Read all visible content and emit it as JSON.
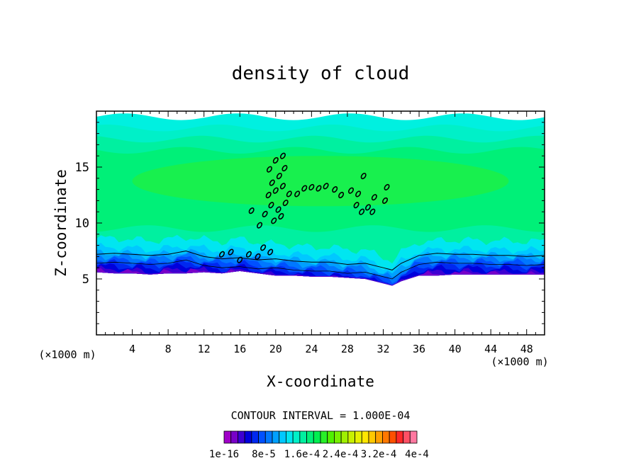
{
  "chart_data": {
    "type": "heatmap",
    "title": "density of cloud",
    "xlabel": "X-coordinate",
    "ylabel": "Z-coordinate",
    "x_unit": "(×1000 m)",
    "x_unit_right": "(×1000 m)",
    "xlim": [
      0,
      50
    ],
    "ylim": [
      0,
      20
    ],
    "x_ticks": [
      4,
      8,
      12,
      16,
      20,
      24,
      28,
      32,
      36,
      40,
      44,
      48
    ],
    "y_ticks": [
      5,
      10,
      15
    ],
    "grid": false,
    "contour_interval_label": "CONTOUR INTERVAL = 1.000E-04",
    "colorbar": {
      "tick_labels": [
        "1e-16",
        "8e-5",
        "1.6e-4",
        "2.4e-4",
        "3.2e-4",
        "4e-4"
      ],
      "colors": [
        "#a000c8",
        "#7800c8",
        "#3c00d2",
        "#0000dc",
        "#0028f0",
        "#0050ff",
        "#0078ff",
        "#00a0ff",
        "#00c8ff",
        "#00e6f0",
        "#00f0c8",
        "#00f0a0",
        "#00f078",
        "#00f050",
        "#28f028",
        "#50f000",
        "#78f000",
        "#a0f000",
        "#c8f000",
        "#e6f000",
        "#ffe600",
        "#ffc800",
        "#ffa000",
        "#ff7800",
        "#ff5000",
        "#ff2828",
        "#ff5064",
        "#ff78a0"
      ]
    },
    "profile_x": [
      0,
      2,
      4,
      6,
      8,
      10,
      12,
      14,
      16,
      18,
      20,
      22,
      24,
      26,
      28,
      30,
      32,
      33,
      34,
      36,
      38,
      40,
      42,
      44,
      46,
      48,
      50
    ],
    "cloud_base_z": [
      5.6,
      5.5,
      5.5,
      5.4,
      5.5,
      5.5,
      5.6,
      5.5,
      5.7,
      5.5,
      5.3,
      5.3,
      5.2,
      5.2,
      5.1,
      5.0,
      4.6,
      4.4,
      4.8,
      5.3,
      5.3,
      5.4,
      5.4,
      5.4,
      5.4,
      5.4,
      5.4
    ],
    "contour_z": [
      7.2,
      7.3,
      7.2,
      7.1,
      7.2,
      7.5,
      7.0,
      6.8,
      6.9,
      6.7,
      6.8,
      6.6,
      6.5,
      6.5,
      6.3,
      6.4,
      6.0,
      5.8,
      6.4,
      7.1,
      7.3,
      7.2,
      7.2,
      7.1,
      7.1,
      7.0,
      7.1
    ],
    "field_bands": [
      {
        "z": 19.5,
        "color": "#00f0e0"
      },
      {
        "z": 18.5,
        "color": "#00f0c8"
      },
      {
        "z": 17.5,
        "color": "#00f0a0"
      },
      {
        "z": 16.5,
        "color": "#00f078"
      },
      {
        "z": 10.5,
        "color": "#00f078"
      },
      {
        "z": 9.5,
        "color": "#00f0a0"
      },
      {
        "z": 8.8,
        "color": "#00e6f0"
      },
      {
        "z": 8.0,
        "color": "#00c8ff"
      },
      {
        "z": 7.5,
        "color": "#00a0ff"
      },
      {
        "z": 7.2,
        "color": "#0078ff"
      },
      {
        "z": 6.9,
        "color": "#0050ff"
      },
      {
        "z": 6.6,
        "color": "#0028f0"
      },
      {
        "z": 6.3,
        "color": "#0000dc"
      },
      {
        "z": 6.0,
        "color": "#3c00d2"
      },
      {
        "z": 5.8,
        "color": "#7800c8"
      }
    ],
    "green_core": {
      "x": [
        4,
        46
      ],
      "z": [
        11.5,
        16
      ],
      "color": "#2cf02c"
    },
    "plume_contours": [
      [
        19.3,
        14.8
      ],
      [
        20.0,
        15.6
      ],
      [
        20.8,
        16.0
      ],
      [
        19.6,
        13.6
      ],
      [
        20.4,
        14.2
      ],
      [
        21.0,
        14.9
      ],
      [
        19.2,
        12.5
      ],
      [
        20.0,
        12.9
      ],
      [
        20.8,
        13.3
      ],
      [
        21.5,
        12.6
      ],
      [
        19.5,
        11.6
      ],
      [
        20.3,
        11.2
      ],
      [
        21.1,
        11.8
      ],
      [
        18.8,
        10.8
      ],
      [
        19.8,
        10.2
      ],
      [
        20.6,
        10.6
      ],
      [
        17.3,
        11.1
      ],
      [
        18.2,
        9.8
      ],
      [
        22.4,
        12.6
      ],
      [
        23.2,
        13.1
      ],
      [
        24.0,
        13.2
      ],
      [
        24.8,
        13.1
      ],
      [
        25.6,
        13.3
      ],
      [
        26.6,
        13.0
      ],
      [
        27.3,
        12.5
      ],
      [
        29.0,
        11.6
      ],
      [
        29.6,
        11.0
      ],
      [
        30.3,
        11.4
      ],
      [
        30.8,
        11.0
      ],
      [
        29.2,
        12.6
      ],
      [
        31.0,
        12.3
      ],
      [
        32.4,
        13.2
      ],
      [
        32.2,
        12.0
      ],
      [
        28.4,
        12.9
      ],
      [
        29.8,
        14.2
      ],
      [
        18.6,
        7.8
      ],
      [
        19.4,
        7.4
      ],
      [
        18.0,
        7.0
      ],
      [
        17.0,
        7.2
      ],
      [
        15.0,
        7.4
      ],
      [
        14.0,
        7.2
      ],
      [
        16.0,
        6.7
      ]
    ]
  }
}
